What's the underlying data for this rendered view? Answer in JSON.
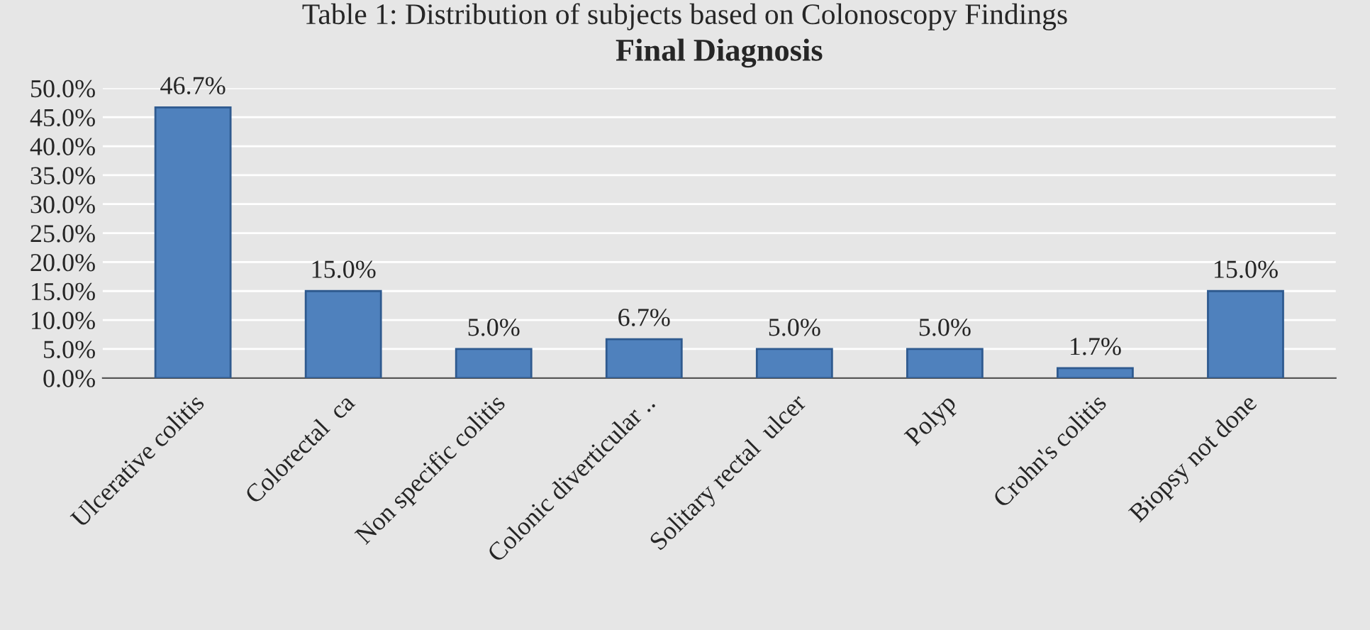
{
  "chart_data": {
    "type": "bar",
    "title": "Final Diagnosis",
    "annotations": [
      "Table 1: Distribution of subjects based on Colonoscopy Findings"
    ],
    "categories": [
      "Ulcerative colitis",
      "Colorectal  ca",
      "Non specific colitis",
      "Colonic diverticular ..",
      "Solitary rectal  ulcer",
      "Polyp",
      "Crohn's colitis",
      "Biopsy not done"
    ],
    "values": [
      46.7,
      15.0,
      5.0,
      6.7,
      5.0,
      5.0,
      1.7,
      15.0
    ],
    "value_labels": [
      "46.7%",
      "15.0%",
      "5.0%",
      "6.7%",
      "5.0%",
      "5.0%",
      "1.7%",
      "15.0%"
    ],
    "color": "#4f81bd",
    "ylim": [
      0,
      50
    ],
    "yticks": [
      {
        "value": 0,
        "label": "0.0%"
      },
      {
        "value": 5,
        "label": "5.0%"
      },
      {
        "value": 10,
        "label": "10.0%"
      },
      {
        "value": 15,
        "label": "15.0%"
      },
      {
        "value": 20,
        "label": "20.0%"
      },
      {
        "value": 25,
        "label": "25.0%"
      },
      {
        "value": 30,
        "label": "30.0%"
      },
      {
        "value": 35,
        "label": "35.0%"
      },
      {
        "value": 40,
        "label": "40.0%"
      },
      {
        "value": 45,
        "label": "45.0%"
      },
      {
        "value": 50,
        "label": "50.0%"
      }
    ],
    "grid": "y",
    "legend": false
  }
}
